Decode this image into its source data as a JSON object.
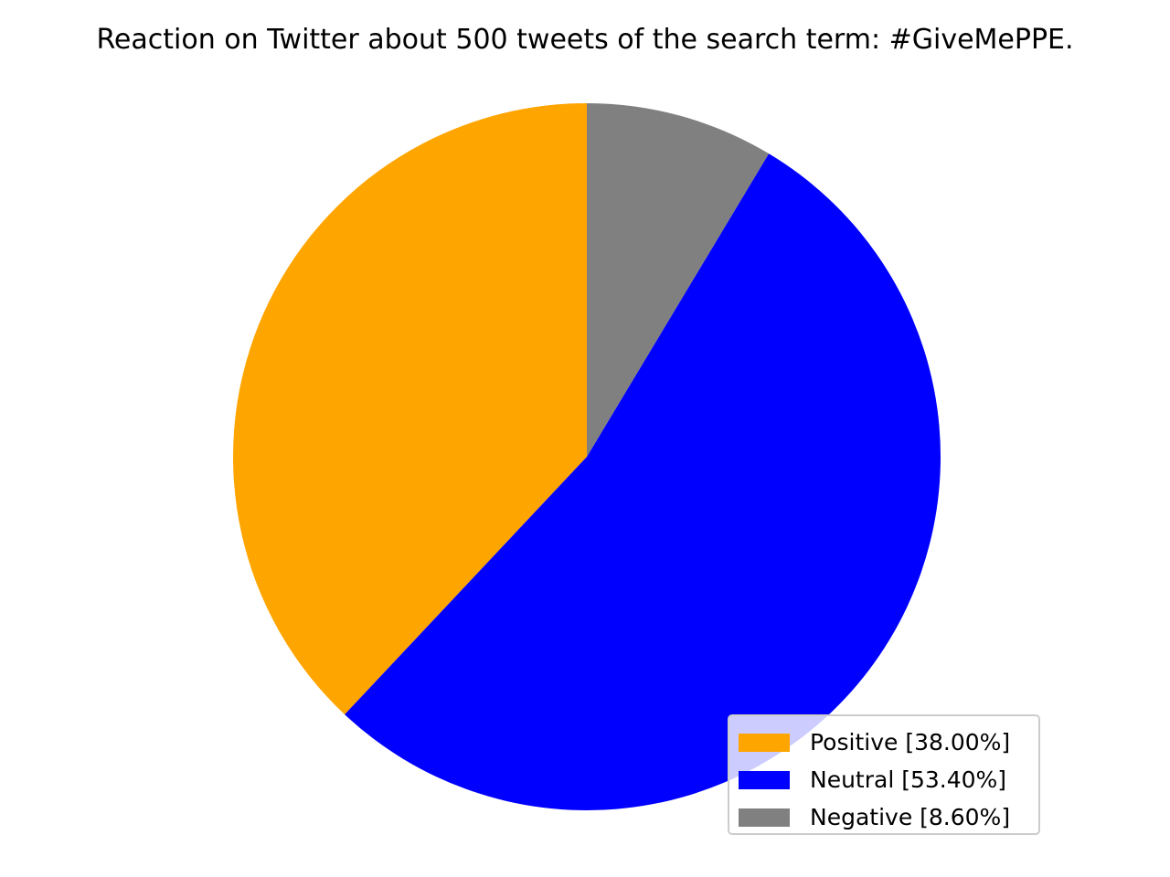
{
  "chart_data": {
    "type": "pie",
    "title": "Reaction on Twitter about 500 tweets of the search term: #GiveMePPE.",
    "slices": [
      {
        "label": "Positive",
        "percent": 38.0,
        "color": "#ffa500",
        "legend_text": "Positive [38.00%]"
      },
      {
        "label": "Neutral",
        "percent": 53.4,
        "color": "#0000ff",
        "legend_text": "Neutral [53.40%]"
      },
      {
        "label": "Negative",
        "percent": 8.6,
        "color": "#808080",
        "legend_text": "Negative [8.60%]"
      }
    ],
    "start_angle_deg": 90,
    "direction": "counterclockwise",
    "legend_placement": "lower-right"
  }
}
